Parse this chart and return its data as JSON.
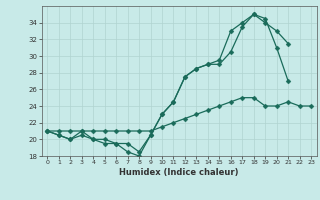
{
  "xlabel": "Humidex (Indice chaleur)",
  "x": [
    0,
    1,
    2,
    3,
    4,
    5,
    6,
    7,
    8,
    9,
    10,
    11,
    12,
    13,
    14,
    15,
    16,
    17,
    18,
    19,
    20,
    21,
    22,
    23
  ],
  "line1": [
    21,
    20.5,
    20,
    20.5,
    20,
    19.5,
    19.5,
    18.5,
    18,
    20.5,
    23,
    24.5,
    27.5,
    28.5,
    29,
    29,
    30.5,
    33.5,
    35,
    34.5,
    31,
    27,
    null,
    null
  ],
  "line2": [
    21,
    20.5,
    20,
    21,
    20,
    20,
    19.5,
    19.5,
    18.5,
    20.5,
    23,
    24.5,
    27.5,
    28.5,
    29,
    29.5,
    33,
    34,
    35,
    34,
    33,
    31.5,
    null,
    null
  ],
  "line3": [
    21,
    21,
    21,
    21,
    21,
    21,
    21,
    21,
    21,
    21,
    21.5,
    22,
    22.5,
    23,
    23.5,
    24,
    24.5,
    25,
    25,
    24,
    24,
    24.5,
    24,
    24
  ],
  "ylim": [
    18,
    36
  ],
  "xlim": [
    -0.5,
    23.5
  ],
  "yticks": [
    18,
    20,
    22,
    24,
    26,
    28,
    30,
    32,
    34
  ],
  "xticks": [
    0,
    1,
    2,
    3,
    4,
    5,
    6,
    7,
    8,
    9,
    10,
    11,
    12,
    13,
    14,
    15,
    16,
    17,
    18,
    19,
    20,
    21,
    22,
    23
  ],
  "color": "#1a6b5a",
  "bg_color": "#c8eae8",
  "grid_color": "#b0d4d0",
  "marker": "D",
  "markersize": 2.5,
  "linewidth": 0.9
}
